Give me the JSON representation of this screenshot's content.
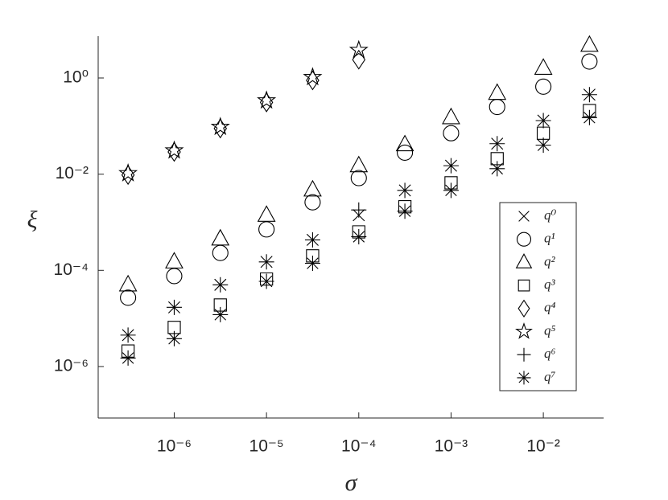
{
  "chart_data": {
    "type": "scatter",
    "x_label": "σ",
    "y_label": "ξ",
    "log_x": true,
    "log_y": true,
    "xlim": [
      1.5e-07,
      0.045
    ],
    "ylim": [
      8.5e-08,
      7.4
    ],
    "xticks": [
      {
        "value": 1e-06,
        "label": "10⁻⁶"
      },
      {
        "value": 1e-05,
        "label": "10⁻⁵"
      },
      {
        "value": 0.0001,
        "label": "10⁻⁴"
      },
      {
        "value": 0.001,
        "label": "10⁻³"
      },
      {
        "value": 0.01,
        "label": "10⁻²"
      }
    ],
    "yticks": [
      {
        "value": 1e-06,
        "label": "10⁻⁶"
      },
      {
        "value": 0.0001,
        "label": "10⁻⁴"
      },
      {
        "value": 0.01,
        "label": "10⁻²"
      },
      {
        "value": 1,
        "label": "10⁰"
      }
    ],
    "legend": "right",
    "x": [
      3.16e-07,
      1e-06,
      3.16e-06,
      1e-05,
      3.16e-05,
      0.0001,
      0.000316,
      0.001,
      0.00316,
      0.01,
      0.0316
    ],
    "series": [
      {
        "name": "q⁰",
        "marker": "x",
        "color": "#000000",
        "values": [
          4.5e-06,
          1.7e-05,
          5e-05,
          0.00015,
          0.00043,
          0.0014,
          0.0046,
          0.015,
          0.043,
          0.13,
          0.45
        ]
      },
      {
        "name": "q¹",
        "marker": "o",
        "color": "#000000",
        "values": [
          2.7e-05,
          7.6e-05,
          0.00023,
          0.00071,
          0.0026,
          0.0083,
          0.028,
          0.071,
          0.25,
          0.66,
          2.2
        ]
      },
      {
        "name": "q²",
        "marker": "^",
        "color": "#000000",
        "values": [
          5e-05,
          0.00015,
          0.00045,
          0.0014,
          0.0047,
          0.015,
          0.041,
          0.15,
          0.48,
          1.6,
          4.8
        ]
      },
      {
        "name": "q³",
        "marker": "s",
        "color": "#000000",
        "values": [
          2.1e-06,
          6.5e-06,
          1.9e-05,
          6.6e-05,
          0.0002,
          0.00063,
          0.0021,
          0.0066,
          0.021,
          0.071,
          0.21
        ]
      },
      {
        "name": "q⁴",
        "marker": "d",
        "color": "#000000",
        "values": [
          0.0096,
          0.029,
          0.089,
          0.31,
          0.89,
          2.4,
          null,
          null,
          null,
          null,
          null
        ]
      },
      {
        "name": "q⁵",
        "marker": "p",
        "color": "#000000",
        "values": [
          0.0104,
          0.031,
          0.096,
          0.34,
          1.04,
          3.8,
          null,
          null,
          null,
          null,
          null
        ]
      },
      {
        "name": "q⁶",
        "marker": "+",
        "color": "#000000",
        "values": [
          4.5e-06,
          1.7e-05,
          5e-05,
          0.00015,
          0.00043,
          0.0018,
          0.0046,
          0.015,
          0.043,
          0.13,
          0.45
        ]
      },
      {
        "name": "q⁷",
        "marker": "*",
        "color": "#000000",
        "values": [
          1.5e-06,
          3.8e-06,
          1.2e-05,
          5.9e-05,
          0.00014,
          0.0005,
          0.0017,
          0.0046,
          0.013,
          0.04,
          0.15
        ]
      }
    ]
  }
}
